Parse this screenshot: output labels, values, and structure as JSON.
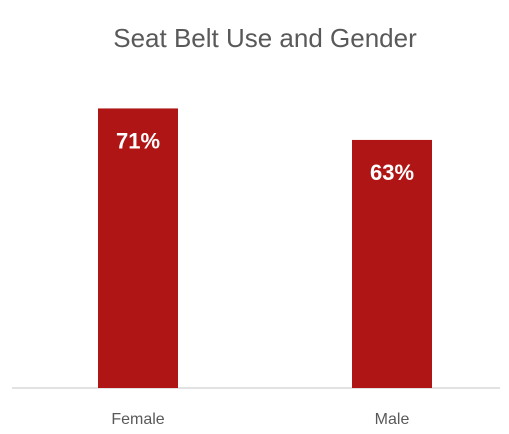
{
  "chart_data": {
    "type": "bar",
    "title": "Seat Belt Use and Gender",
    "categories": [
      "Female",
      "Male"
    ],
    "values": [
      71,
      63
    ],
    "value_labels": [
      "71%",
      "63%"
    ],
    "color": "#b01515",
    "ylim": [
      0,
      80
    ]
  }
}
